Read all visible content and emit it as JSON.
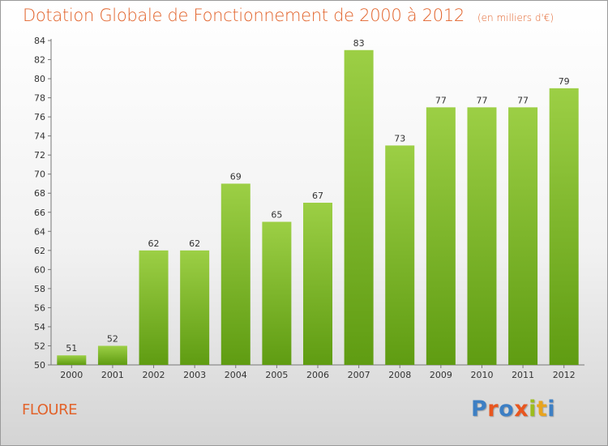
{
  "header": {
    "title": "Dotation Globale de Fonctionnement de 2000 à 2012",
    "unit": "(en milliers d'€)"
  },
  "footer": {
    "commune": "FLOURE",
    "logo_text": "Proxiti"
  },
  "colors": {
    "title": "#e2632b",
    "bar_light": "#9ccf45",
    "bar_dark": "#5f9c12",
    "logo": [
      "#3d7fc4",
      "#e8561f",
      "#9cbd1f",
      "#e8a41f"
    ]
  },
  "chart_data": {
    "type": "bar",
    "title": "Dotation Globale de Fonctionnement de 2000 à 2012",
    "subtitle": "(en milliers d'€)",
    "xlabel": "",
    "ylabel": "",
    "categories": [
      "2000",
      "2001",
      "2002",
      "2003",
      "2004",
      "2005",
      "2006",
      "2007",
      "2008",
      "2009",
      "2010",
      "2011",
      "2012"
    ],
    "values": [
      51,
      52,
      62,
      62,
      69,
      65,
      67,
      83,
      73,
      77,
      77,
      77,
      79
    ],
    "ylim": [
      50,
      84
    ],
    "yticks": [
      50,
      52,
      54,
      56,
      58,
      60,
      62,
      64,
      66,
      68,
      70,
      72,
      74,
      76,
      78,
      80,
      82,
      84
    ],
    "grid": false,
    "legend": "none"
  }
}
